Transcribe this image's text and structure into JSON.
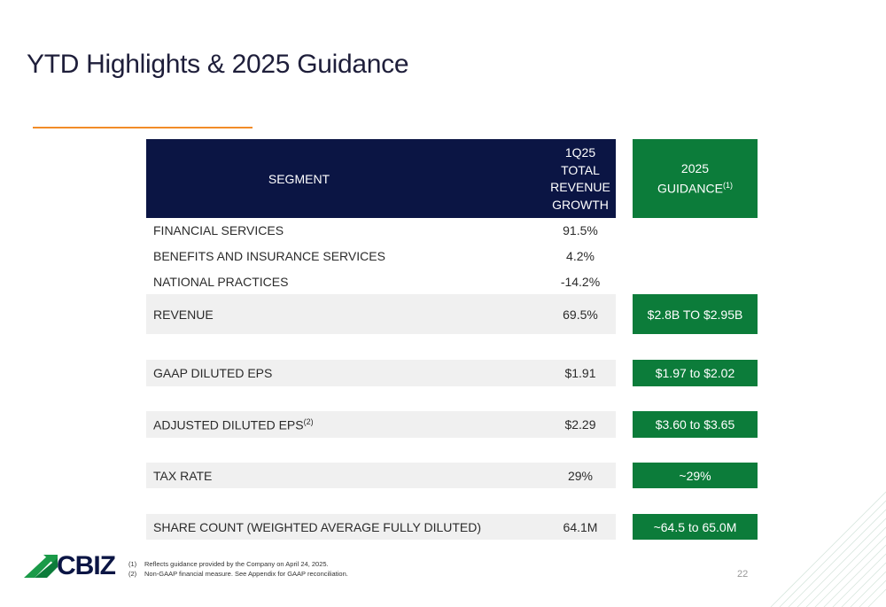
{
  "slide": {
    "title": "YTD Highlights & 2025 Guidance",
    "page_number": "22"
  },
  "table": {
    "header": {
      "segment": "SEGMENT",
      "growth_lines": [
        "1Q25",
        "TOTAL",
        "REVENUE",
        "GROWTH"
      ],
      "guidance": "2025",
      "guidance_line2": "GUIDANCE",
      "guidance_note": "(1)"
    },
    "segments": [
      {
        "label": "FINANCIAL SERVICES",
        "value": "91.5%"
      },
      {
        "label": "BENEFITS AND INSURANCE SERVICES",
        "value": "4.2%"
      },
      {
        "label": "NATIONAL PRACTICES",
        "value": "-14.2%"
      }
    ],
    "metrics": {
      "revenue": {
        "label": "REVENUE",
        "value": "69.5%",
        "guidance": "$2.8B TO $2.95B"
      },
      "gaap_eps": {
        "label": "GAAP DILUTED EPS",
        "value": "$1.91",
        "guidance": "$1.97 to $2.02"
      },
      "adj_eps": {
        "label": "ADJUSTED DILUTED EPS",
        "note": "(2)",
        "value": "$2.29",
        "guidance": "$3.60 to $3.65"
      },
      "tax_rate": {
        "label": "TAX RATE",
        "value": "29%",
        "guidance": "~29%"
      },
      "share_count": {
        "label": "SHARE COUNT (WEIGHTED AVERAGE FULLY DILUTED)",
        "value": "64.1M",
        "guidance": "~64.5 to 65.0M"
      }
    }
  },
  "footnotes": [
    {
      "num": "(1)",
      "text": "Reflects guidance provided by the Company on April 24, 2025."
    },
    {
      "num": "(2)",
      "text": "Non-GAAP financial measure. See Appendix for GAAP reconciliation."
    }
  ],
  "logo": {
    "text": "CBIZ",
    "icon": "cbiz-arrow-icon"
  },
  "colors": {
    "navy": "#0b1544",
    "green": "#0c7c3a",
    "orange": "#f28c28",
    "row_gray": "#f0f0f0"
  }
}
